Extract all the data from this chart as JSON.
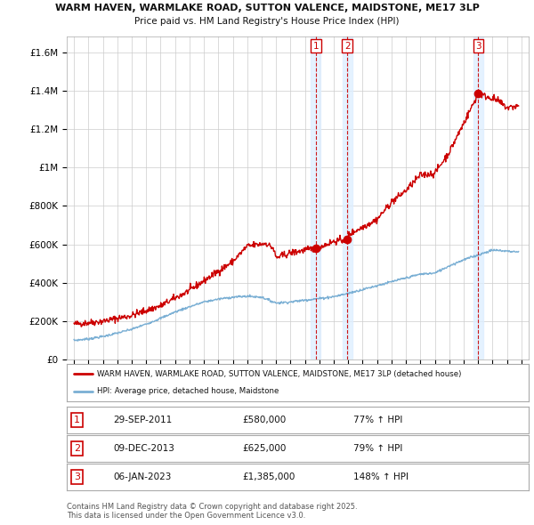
{
  "title1": "WARM HAVEN, WARMLAKE ROAD, SUTTON VALENCE, MAIDSTONE, ME17 3LP",
  "title2": "Price paid vs. HM Land Registry's House Price Index (HPI)",
  "ylabel_ticks": [
    "£0",
    "£200K",
    "£400K",
    "£600K",
    "£800K",
    "£1M",
    "£1.2M",
    "£1.4M",
    "£1.6M"
  ],
  "ytick_vals": [
    0,
    200000,
    400000,
    600000,
    800000,
    1000000,
    1200000,
    1400000,
    1600000
  ],
  "ylim": [
    0,
    1680000
  ],
  "xlim_start": 1994.5,
  "xlim_end": 2026.5,
  "sale_dates": [
    2011.747,
    2013.936,
    2023.014
  ],
  "sale_prices": [
    580000,
    625000,
    1385000
  ],
  "sale_labels": [
    "1",
    "2",
    "3"
  ],
  "legend_line1": "WARM HAVEN, WARMLAKE ROAD, SUTTON VALENCE, MAIDSTONE, ME17 3LP (detached house)",
  "legend_line2": "HPI: Average price, detached house, Maidstone",
  "table_data": [
    [
      "1",
      "29-SEP-2011",
      "£580,000",
      "77% ↑ HPI"
    ],
    [
      "2",
      "09-DEC-2013",
      "£625,000",
      "79% ↑ HPI"
    ],
    [
      "3",
      "06-JAN-2023",
      "£1,385,000",
      "148% ↑ HPI"
    ]
  ],
  "footnote1": "Contains HM Land Registry data © Crown copyright and database right 2025.",
  "footnote2": "This data is licensed under the Open Government Licence v3.0.",
  "red_color": "#cc0000",
  "blue_color": "#7aafd4",
  "background_color": "#ffffff",
  "grid_color": "#cccccc",
  "highlight_box_color": "#ddeeff"
}
